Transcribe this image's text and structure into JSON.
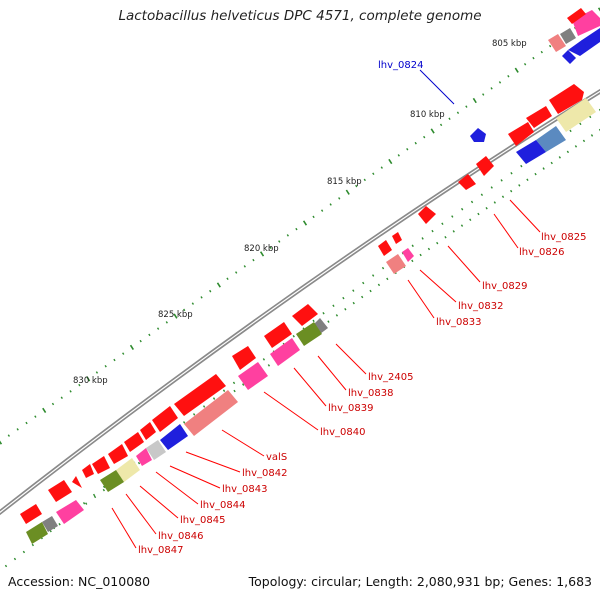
{
  "title": "Lactobacillus helveticus DPC 4571, complete genome",
  "accession_text": "Accession: NC_010080",
  "summary_text": "Topology: circular; Length: 2,080,931 bp; Genes: 1,683",
  "colors": {
    "backbone": "#8a8a8a",
    "tick": "#2e8b2e",
    "red_gene": "#ff1010",
    "pink_gene": "#ff40a0",
    "salmon_gene": "#f08080",
    "blue_gene": "#1f1fdd",
    "steel_gene": "#5b8ac0",
    "olive_gene": "#6b8e23",
    "khaki_gene": "#eee8aa",
    "gray_gene": "#808080",
    "light_gray_gene": "#c8c8c8",
    "red_label": "#cc0000",
    "blue_label": "#0000cc"
  },
  "kbp_labels": [
    "805 kbp",
    "810 kbp",
    "815 kbp",
    "820 kbp",
    "825 kbp",
    "830 kbp"
  ],
  "gene_labels_right": [
    "lhv_0825",
    "lhv_0826",
    "lhv_0829",
    "lhv_0832",
    "lhv_0833",
    "lhv_2405",
    "lhv_0838",
    "lhv_0839",
    "lhv_0840"
  ],
  "gene_labels_lower": [
    "valS",
    "lhv_0842",
    "lhv_0843",
    "lhv_0844",
    "lhv_0845",
    "lhv_0846",
    "lhv_0847"
  ],
  "gene_label_blue": "lhv_0824"
}
